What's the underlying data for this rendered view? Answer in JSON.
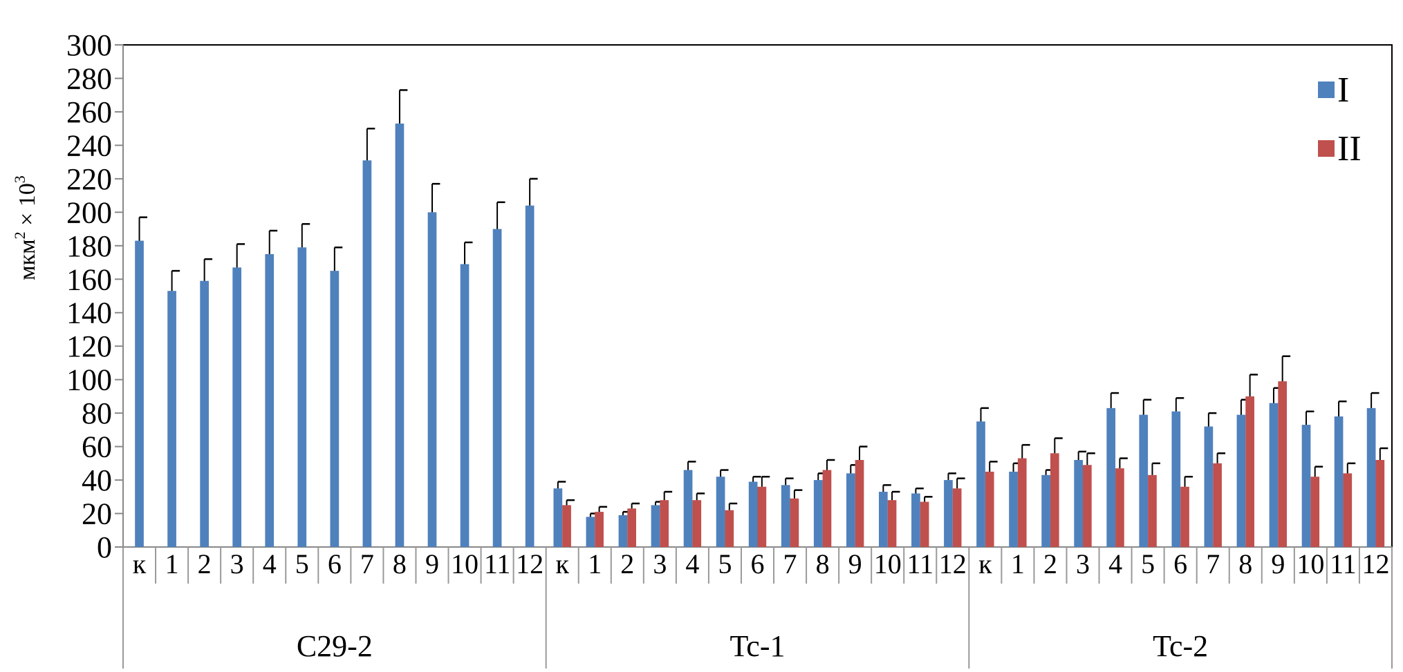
{
  "chart_data": {
    "type": "bar",
    "ylabel": "мкм",
    "ylabel_sup": "2",
    "ylabel_tail": " × 10",
    "ylabel_sup2": "3",
    "ylim": [
      0,
      300
    ],
    "yticks": [
      0,
      20,
      40,
      60,
      80,
      100,
      120,
      140,
      160,
      180,
      200,
      220,
      240,
      260,
      280,
      300
    ],
    "grid": false,
    "legend_position": "top-right",
    "categories": [
      "к",
      "1",
      "2",
      "3",
      "4",
      "5",
      "6",
      "7",
      "8",
      "9",
      "10",
      "11",
      "12"
    ],
    "colors": {
      "I": "#4f81bd",
      "II": "#c0504d"
    },
    "groups": [
      {
        "name": "C29-2",
        "series": [
          {
            "name": "I",
            "values": [
              183,
              153,
              159,
              167,
              175,
              179,
              165,
              231,
              253,
              200,
              169,
              190,
              204
            ],
            "errors": [
              14,
              12,
              13,
              14,
              14,
              14,
              14,
              19,
              20,
              17,
              13,
              16,
              16
            ]
          }
        ]
      },
      {
        "name": "Tc-1",
        "series": [
          {
            "name": "I",
            "values": [
              35,
              18,
              19,
              25,
              46,
              42,
              39,
              37,
              40,
              44,
              33,
              32,
              40
            ],
            "errors": [
              4,
              2,
              2,
              2,
              5,
              4,
              3,
              4,
              4,
              5,
              4,
              3,
              4
            ]
          },
          {
            "name": "II",
            "values": [
              25,
              21,
              23,
              28,
              28,
              22,
              36,
              29,
              46,
              52,
              28,
              27,
              35
            ],
            "errors": [
              3,
              3,
              3,
              5,
              4,
              4,
              6,
              5,
              6,
              8,
              5,
              3,
              6
            ]
          }
        ]
      },
      {
        "name": "Tc-2",
        "series": [
          {
            "name": "I",
            "values": [
              75,
              45,
              43,
              52,
              83,
              79,
              81,
              72,
              79,
              86,
              73,
              78,
              83
            ],
            "errors": [
              8,
              5,
              3,
              5,
              9,
              9,
              8,
              8,
              9,
              9,
              8,
              9,
              9
            ]
          },
          {
            "name": "II",
            "values": [
              45,
              53,
              56,
              49,
              47,
              43,
              36,
              50,
              90,
              99,
              42,
              44,
              52
            ],
            "errors": [
              6,
              8,
              9,
              7,
              6,
              7,
              6,
              6,
              13,
              15,
              6,
              6,
              7
            ]
          }
        ]
      }
    ],
    "legend": [
      "I",
      "II"
    ]
  }
}
